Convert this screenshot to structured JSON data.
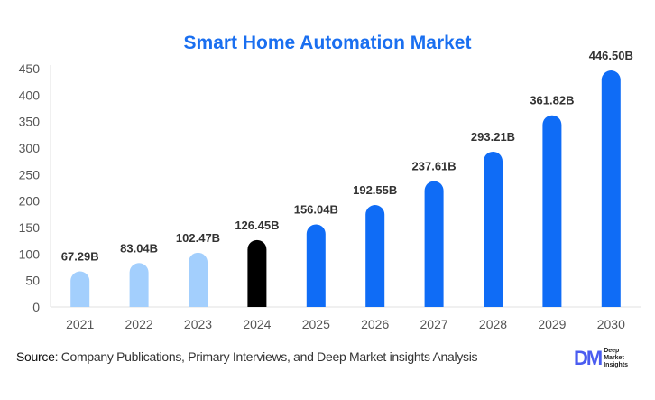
{
  "chart_data": {
    "type": "bar",
    "title": "Smart Home Automation Market",
    "categories": [
      "2021",
      "2022",
      "2023",
      "2024",
      "2025",
      "2026",
      "2027",
      "2028",
      "2029",
      "2030"
    ],
    "values": [
      67.29,
      83.04,
      102.47,
      126.45,
      156.04,
      192.55,
      237.61,
      293.21,
      361.82,
      446.5
    ],
    "data_labels": [
      "67.29B",
      "83.04B",
      "102.47B",
      "126.45B",
      "156.04B",
      "192.55B",
      "237.61B",
      "293.21B",
      "361.82B",
      "446.50B"
    ],
    "ylim": [
      0,
      450
    ],
    "yticks": [
      0,
      50,
      100,
      150,
      200,
      250,
      300,
      350,
      400,
      450
    ],
    "grid": false,
    "colors": {
      "historical": "#a3cffd",
      "current": "#000000",
      "forecast": "#0f6cf6",
      "title": "#1a6ff0"
    }
  },
  "footer": {
    "source_label": "Source",
    "source_text": ": Company Publications, Primary Interviews, and Deep Market insights Analysis",
    "logo_mark": "DM",
    "logo_text": [
      "Deep",
      "Market",
      "Insights"
    ]
  }
}
